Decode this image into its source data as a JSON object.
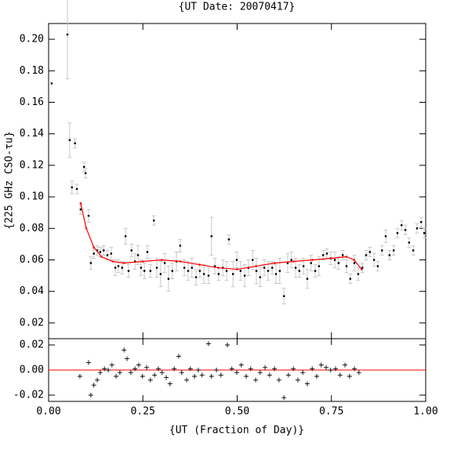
{
  "chart_data": [
    {
      "type": "scatter",
      "title": "{UT Date: 20070417}",
      "ylabel": "{225 GHz CSO-τu}",
      "xlim": [
        0,
        1
      ],
      "ylim": [
        0.01,
        0.21
      ],
      "yticks": [
        {
          "value": 0.02,
          "label": "0.02"
        },
        {
          "value": 0.04,
          "label": "0.04"
        },
        {
          "value": 0.06,
          "label": "0.06"
        },
        {
          "value": 0.08,
          "label": "0.08"
        },
        {
          "value": 0.1,
          "label": "0.10"
        },
        {
          "value": 0.12,
          "label": "0.12"
        },
        {
          "value": 0.14,
          "label": "0.14"
        },
        {
          "value": 0.16,
          "label": "0.16"
        },
        {
          "value": 0.18,
          "label": "0.18"
        },
        {
          "value": 0.2,
          "label": "0.20"
        }
      ],
      "color": "#000000",
      "error_color": "#c8c8c8",
      "x": [
        0.008,
        0.05,
        0.056,
        0.07,
        0.062,
        0.075,
        0.085,
        0.094,
        0.098,
        0.106,
        0.112,
        0.12,
        0.129,
        0.137,
        0.146,
        0.156,
        0.166,
        0.177,
        0.185,
        0.195,
        0.204,
        0.212,
        0.22,
        0.229,
        0.237,
        0.245,
        0.254,
        0.262,
        0.27,
        0.279,
        0.287,
        0.297,
        0.308,
        0.318,
        0.328,
        0.339,
        0.349,
        0.36,
        0.37,
        0.38,
        0.391,
        0.401,
        0.412,
        0.424,
        0.432,
        0.441,
        0.451,
        0.462,
        0.472,
        0.478,
        0.489,
        0.499,
        0.509,
        0.52,
        0.53,
        0.541,
        0.551,
        0.561,
        0.572,
        0.582,
        0.593,
        0.603,
        0.613,
        0.624,
        0.634,
        0.644,
        0.655,
        0.665,
        0.676,
        0.686,
        0.696,
        0.707,
        0.717,
        0.728,
        0.738,
        0.748,
        0.759,
        0.769,
        0.78,
        0.79,
        0.8,
        0.811,
        0.821,
        0.832,
        0.842,
        0.852,
        0.863,
        0.873,
        0.884,
        0.894,
        0.904,
        0.915,
        0.925,
        0.936,
        0.946,
        0.956,
        0.967,
        0.977,
        0.988,
        0.996
      ],
      "values": [
        0.172,
        0.203,
        0.136,
        0.134,
        0.106,
        0.105,
        0.092,
        0.119,
        0.115,
        0.088,
        0.058,
        0.064,
        0.066,
        0.065,
        0.066,
        0.063,
        0.064,
        0.055,
        0.056,
        0.055,
        0.075,
        0.053,
        0.066,
        0.059,
        0.063,
        0.055,
        0.053,
        0.065,
        0.053,
        0.085,
        0.055,
        0.051,
        0.058,
        0.048,
        0.053,
        0.059,
        0.069,
        0.055,
        0.053,
        0.055,
        0.049,
        0.053,
        0.051,
        0.05,
        0.075,
        0.056,
        0.051,
        0.055,
        0.053,
        0.073,
        0.051,
        0.06,
        0.053,
        0.05,
        0.055,
        0.06,
        0.053,
        0.049,
        0.055,
        0.053,
        0.055,
        0.051,
        0.053,
        0.037,
        0.058,
        0.06,
        0.055,
        0.053,
        0.056,
        0.048,
        0.058,
        0.053,
        0.056,
        0.063,
        0.064,
        0.061,
        0.06,
        0.058,
        0.063,
        0.056,
        0.048,
        0.058,
        0.051,
        0.055,
        0.063,
        0.065,
        0.06,
        0.056,
        0.066,
        0.075,
        0.063,
        0.066,
        0.077,
        0.082,
        0.079,
        0.071,
        0.066,
        0.08,
        0.084,
        0.077
      ],
      "errors": [
        0,
        0.028,
        0.011,
        0.003,
        0.004,
        0.003,
        0.003,
        0.003,
        0.003,
        0.004,
        0.004,
        0.003,
        0.003,
        0.003,
        0.003,
        0.003,
        0.004,
        0.005,
        0.004,
        0.004,
        0.005,
        0.004,
        0.004,
        0.005,
        0.006,
        0.005,
        0.005,
        0.004,
        0.004,
        0.003,
        0.006,
        0.008,
        0.006,
        0.008,
        0.005,
        0.006,
        0.004,
        0.005,
        0.006,
        0.006,
        0.005,
        0.004,
        0.006,
        0.005,
        0.012,
        0.005,
        0.004,
        0.005,
        0.006,
        0.003,
        0.008,
        0.005,
        0.006,
        0.007,
        0.005,
        0.006,
        0.008,
        0.006,
        0.005,
        0.006,
        0.004,
        0.006,
        0.008,
        0.005,
        0.006,
        0.005,
        0.006,
        0.004,
        0.005,
        0.006,
        0.005,
        0.004,
        0.006,
        0.003,
        0.003,
        0.004,
        0.005,
        0.004,
        0.003,
        0.004,
        0.003,
        0.005,
        0.004,
        0.003,
        0.003,
        0.003,
        0.004,
        0.003,
        0.003,
        0.004,
        0.003,
        0.003,
        0.003,
        0.003,
        0.003,
        0.003,
        0.003,
        0.003,
        0.003,
        0.003
      ],
      "fit": {
        "color": "#ff0000",
        "x": [
          0.085,
          0.1,
          0.12,
          0.14,
          0.17,
          0.2,
          0.25,
          0.3,
          0.35,
          0.4,
          0.45,
          0.5,
          0.55,
          0.6,
          0.65,
          0.7,
          0.75,
          0.79,
          0.81,
          0.83
        ],
        "values": [
          0.096,
          0.08,
          0.068,
          0.062,
          0.059,
          0.058,
          0.059,
          0.06,
          0.059,
          0.057,
          0.055,
          0.054,
          0.056,
          0.058,
          0.059,
          0.06,
          0.061,
          0.062,
          0.06,
          0.054
        ]
      }
    },
    {
      "type": "scatter",
      "xlabel": "{UT (Fraction of Day)}",
      "xlim": [
        0,
        1
      ],
      "ylim": [
        -0.025,
        0.025
      ],
      "xticks": [
        {
          "value": 0,
          "label": "0.00"
        },
        0.25,
        {
          "value": 0.5,
          "label": "0.50"
        },
        0.75,
        {
          "value": 1,
          "label": "1.00"
        }
      ],
      "yticks": [
        {
          "value": -0.02,
          "label": "-0.02"
        },
        {
          "value": 0,
          "label": "0.00"
        },
        {
          "value": 0.02,
          "label": "0.02"
        }
      ],
      "color": "#000000",
      "zero_color": "#ff0000",
      "x": [
        0.083,
        0.106,
        0.112,
        0.12,
        0.129,
        0.137,
        0.148,
        0.158,
        0.168,
        0.179,
        0.189,
        0.2,
        0.208,
        0.218,
        0.229,
        0.239,
        0.249,
        0.26,
        0.27,
        0.281,
        0.291,
        0.301,
        0.312,
        0.322,
        0.333,
        0.345,
        0.353,
        0.366,
        0.376,
        0.387,
        0.397,
        0.407,
        0.424,
        0.432,
        0.445,
        0.457,
        0.474,
        0.486,
        0.499,
        0.511,
        0.524,
        0.536,
        0.549,
        0.561,
        0.574,
        0.586,
        0.599,
        0.611,
        0.624,
        0.636,
        0.649,
        0.661,
        0.674,
        0.686,
        0.699,
        0.711,
        0.723,
        0.736,
        0.748,
        0.761,
        0.773,
        0.786,
        0.798,
        0.811,
        0.823
      ],
      "values": [
        -0.005,
        0.006,
        -0.02,
        -0.012,
        -0.008,
        -0.002,
        0.001,
        0,
        0.004,
        -0.005,
        -0.002,
        0.016,
        0.009,
        -0.002,
        0.001,
        0.004,
        -0.005,
        0.002,
        -0.008,
        -0.004,
        0.001,
        -0.002,
        -0.006,
        -0.011,
        0.001,
        0.011,
        -0.002,
        -0.008,
        0.001,
        -0.005,
        0,
        -0.004,
        0.021,
        -0.005,
        0,
        -0.004,
        0.02,
        0.001,
        -0.002,
        0.004,
        -0.005,
        0.001,
        -0.008,
        -0.002,
        0.002,
        -0.004,
        0.001,
        -0.008,
        -0.022,
        -0.004,
        0.001,
        -0.008,
        -0.002,
        -0.011,
        0.001,
        -0.005,
        0.004,
        0.002,
        0,
        0.001,
        -0.004,
        0.004,
        -0.005,
        0.001,
        -0.002
      ]
    }
  ]
}
